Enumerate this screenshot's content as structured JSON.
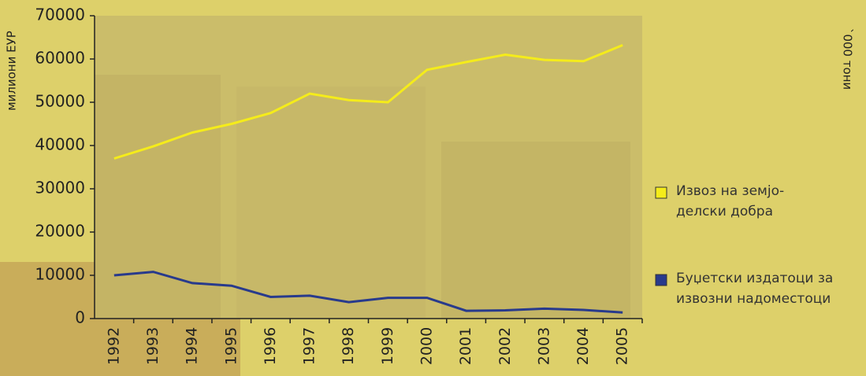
{
  "chart_data": {
    "type": "line",
    "ylabel": "милиони ЕУР",
    "y2label": "`000 тони",
    "categories": [
      "1992",
      "1993",
      "1994",
      "1995",
      "1996",
      "1997",
      "1998",
      "1999",
      "2000",
      "2001",
      "2002",
      "2003",
      "2004",
      "2005"
    ],
    "series": [
      {
        "name": "Извоз на земјо-делски добра",
        "color": "#f5ec1a",
        "values": [
          37000,
          39800,
          43000,
          45000,
          47500,
          52000,
          50500,
          50000,
          57500,
          59300,
          61000,
          59800,
          59500,
          63200
        ]
      },
      {
        "name": "Буџетски издатоци за извозни надоместоци",
        "color": "#283a8c",
        "values": [
          10000,
          10800,
          8200,
          7600,
          5000,
          5300,
          3800,
          4800,
          4800,
          1800,
          1900,
          2300,
          2000,
          1400
        ]
      }
    ],
    "ylim": [
      0,
      70000
    ],
    "yticks": [
      0,
      10000,
      20000,
      30000,
      40000,
      50000,
      60000,
      70000
    ],
    "legend": "right"
  }
}
